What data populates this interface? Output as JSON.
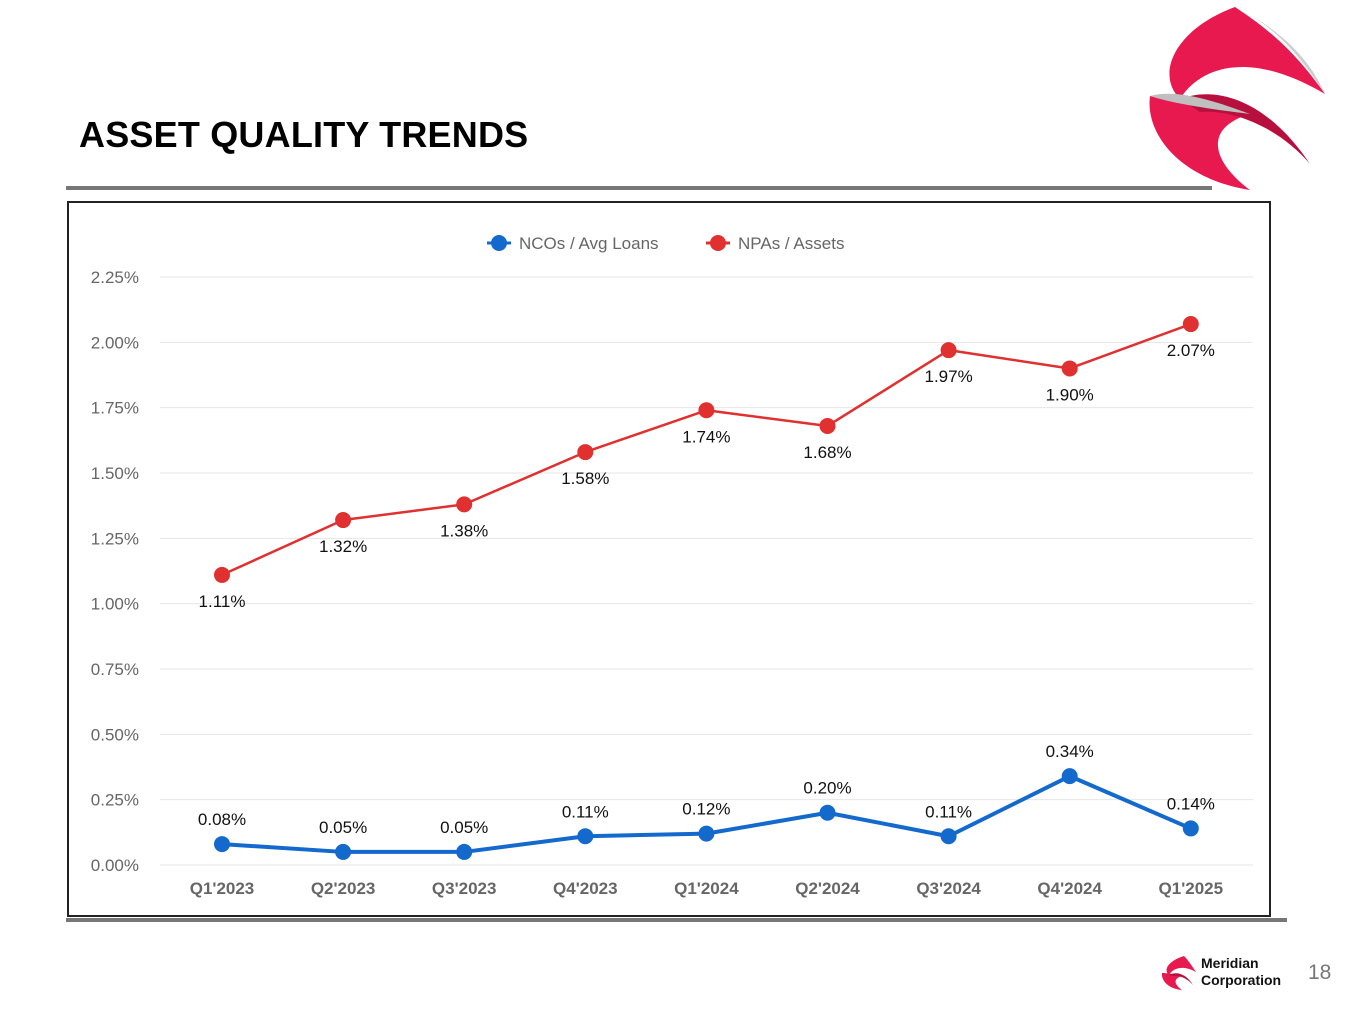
{
  "slide": {
    "title": "ASSET QUALITY TRENDS",
    "page_number": "18",
    "company_line1": "Meridian",
    "company_line2": "Corporation"
  },
  "colors": {
    "nco": "#1469cd",
    "npa": "#e03030",
    "accent": "#e8194f"
  },
  "chart_data": {
    "type": "line",
    "title": "",
    "xlabel": "",
    "ylabel": "",
    "categories": [
      "Q1'2023",
      "Q2'2023",
      "Q3'2023",
      "Q4'2023",
      "Q1'2024",
      "Q2'2024",
      "Q3'2024",
      "Q4'2024",
      "Q1'2025"
    ],
    "ylim": [
      0,
      2.25
    ],
    "yticks": [
      "0.00%",
      "0.25%",
      "0.50%",
      "0.75%",
      "1.00%",
      "1.25%",
      "1.50%",
      "1.75%",
      "2.00%",
      "2.25%"
    ],
    "ytick_values": [
      0,
      0.25,
      0.5,
      0.75,
      1.0,
      1.25,
      1.5,
      1.75,
      2.0,
      2.25
    ],
    "grid": true,
    "legend_position": "top-center",
    "series": [
      {
        "name": "NCOs / Avg Loans",
        "color": "#1469cd",
        "values": [
          0.08,
          0.05,
          0.05,
          0.11,
          0.12,
          0.2,
          0.11,
          0.34,
          0.14
        ],
        "labels": [
          "0.08%",
          "0.05%",
          "0.05%",
          "0.11%",
          "0.12%",
          "0.20%",
          "0.11%",
          "0.34%",
          "0.14%"
        ]
      },
      {
        "name": "NPAs / Assets",
        "color": "#e03030",
        "values": [
          1.11,
          1.32,
          1.38,
          1.58,
          1.74,
          1.68,
          1.97,
          1.9,
          2.07
        ],
        "labels": [
          "1.11%",
          "1.32%",
          "1.38%",
          "1.58%",
          "1.74%",
          "1.68%",
          "1.97%",
          "1.90%",
          "2.07%"
        ]
      }
    ]
  }
}
